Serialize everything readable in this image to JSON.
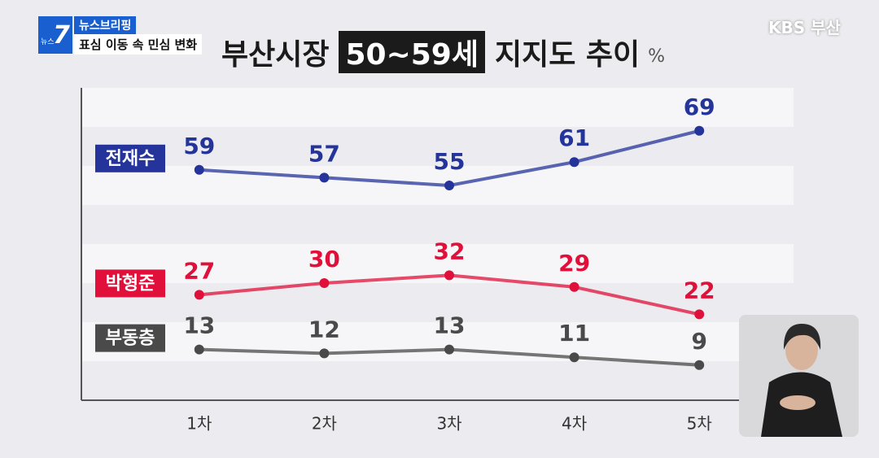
{
  "broadcast": {
    "program_small": "뉴스",
    "program_number": "7",
    "segment": "뉴스브리핑",
    "headline": "표심 이동 속 민심 변화",
    "channel": "KBS 부산"
  },
  "chart_data": {
    "type": "line",
    "title_parts": [
      "부산시장",
      "50~59세",
      "지지도 추이"
    ],
    "unit": "%",
    "categories": [
      "1차",
      "2차",
      "3차",
      "4차",
      "5차"
    ],
    "series": [
      {
        "name": "전재수",
        "color": "#24349a",
        "values": [
          59,
          57,
          55,
          61,
          69
        ]
      },
      {
        "name": "박형준",
        "color": "#e0103a",
        "values": [
          27,
          30,
          32,
          29,
          22
        ]
      },
      {
        "name": "부동층",
        "color": "#4a4a4a",
        "values": [
          13,
          12,
          13,
          11,
          9
        ]
      }
    ],
    "ylim": [
      0,
      80
    ]
  }
}
